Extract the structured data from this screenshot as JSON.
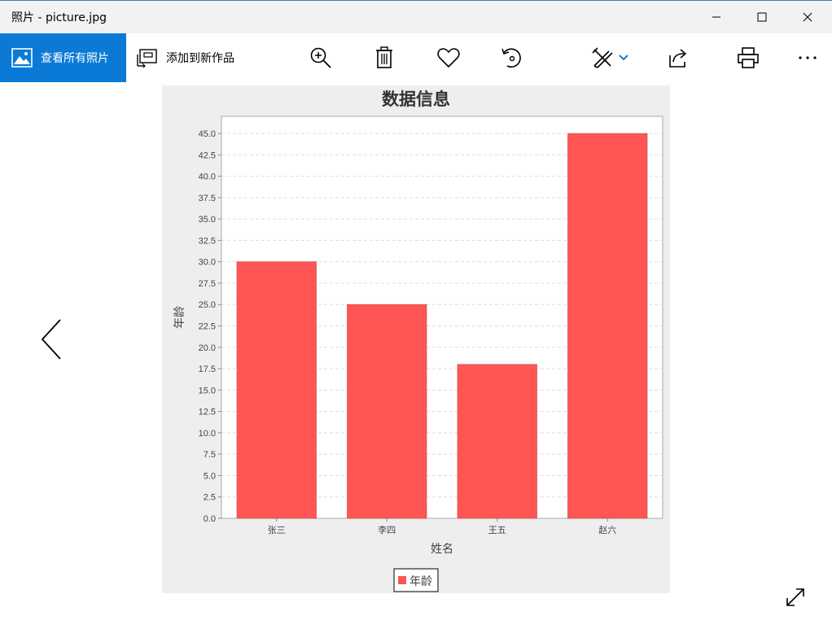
{
  "app": {
    "window_title": "照片 - picture.jpg"
  },
  "toolbar": {
    "view_all_label": "查看所有照片",
    "add_new_label": "添加到新作品",
    "icons": [
      "zoom-in-icon",
      "delete-icon",
      "favorite-icon",
      "rotate-icon",
      "edit-create-icon",
      "share-icon",
      "print-icon",
      "more-icon"
    ]
  },
  "colors": {
    "accent": "#0b7ad6",
    "bar": "#ff5555",
    "chart_bg": "#eeeeee"
  },
  "chart_data": {
    "type": "bar",
    "title": "数据信息",
    "xlabel": "姓名",
    "ylabel": "年龄",
    "categories": [
      "张三",
      "李四",
      "王五",
      "赵六"
    ],
    "series": [
      {
        "name": "年龄",
        "values": [
          30,
          25,
          18,
          45
        ]
      }
    ],
    "ylim": [
      0,
      47
    ],
    "yticks": [
      "0.0",
      "2.5",
      "5.0",
      "7.5",
      "10.0",
      "12.5",
      "15.0",
      "17.5",
      "20.0",
      "22.5",
      "25.0",
      "27.5",
      "30.0",
      "32.5",
      "35.0",
      "37.5",
      "40.0",
      "42.5",
      "45.0"
    ],
    "grid": true,
    "legend": "bottom"
  }
}
